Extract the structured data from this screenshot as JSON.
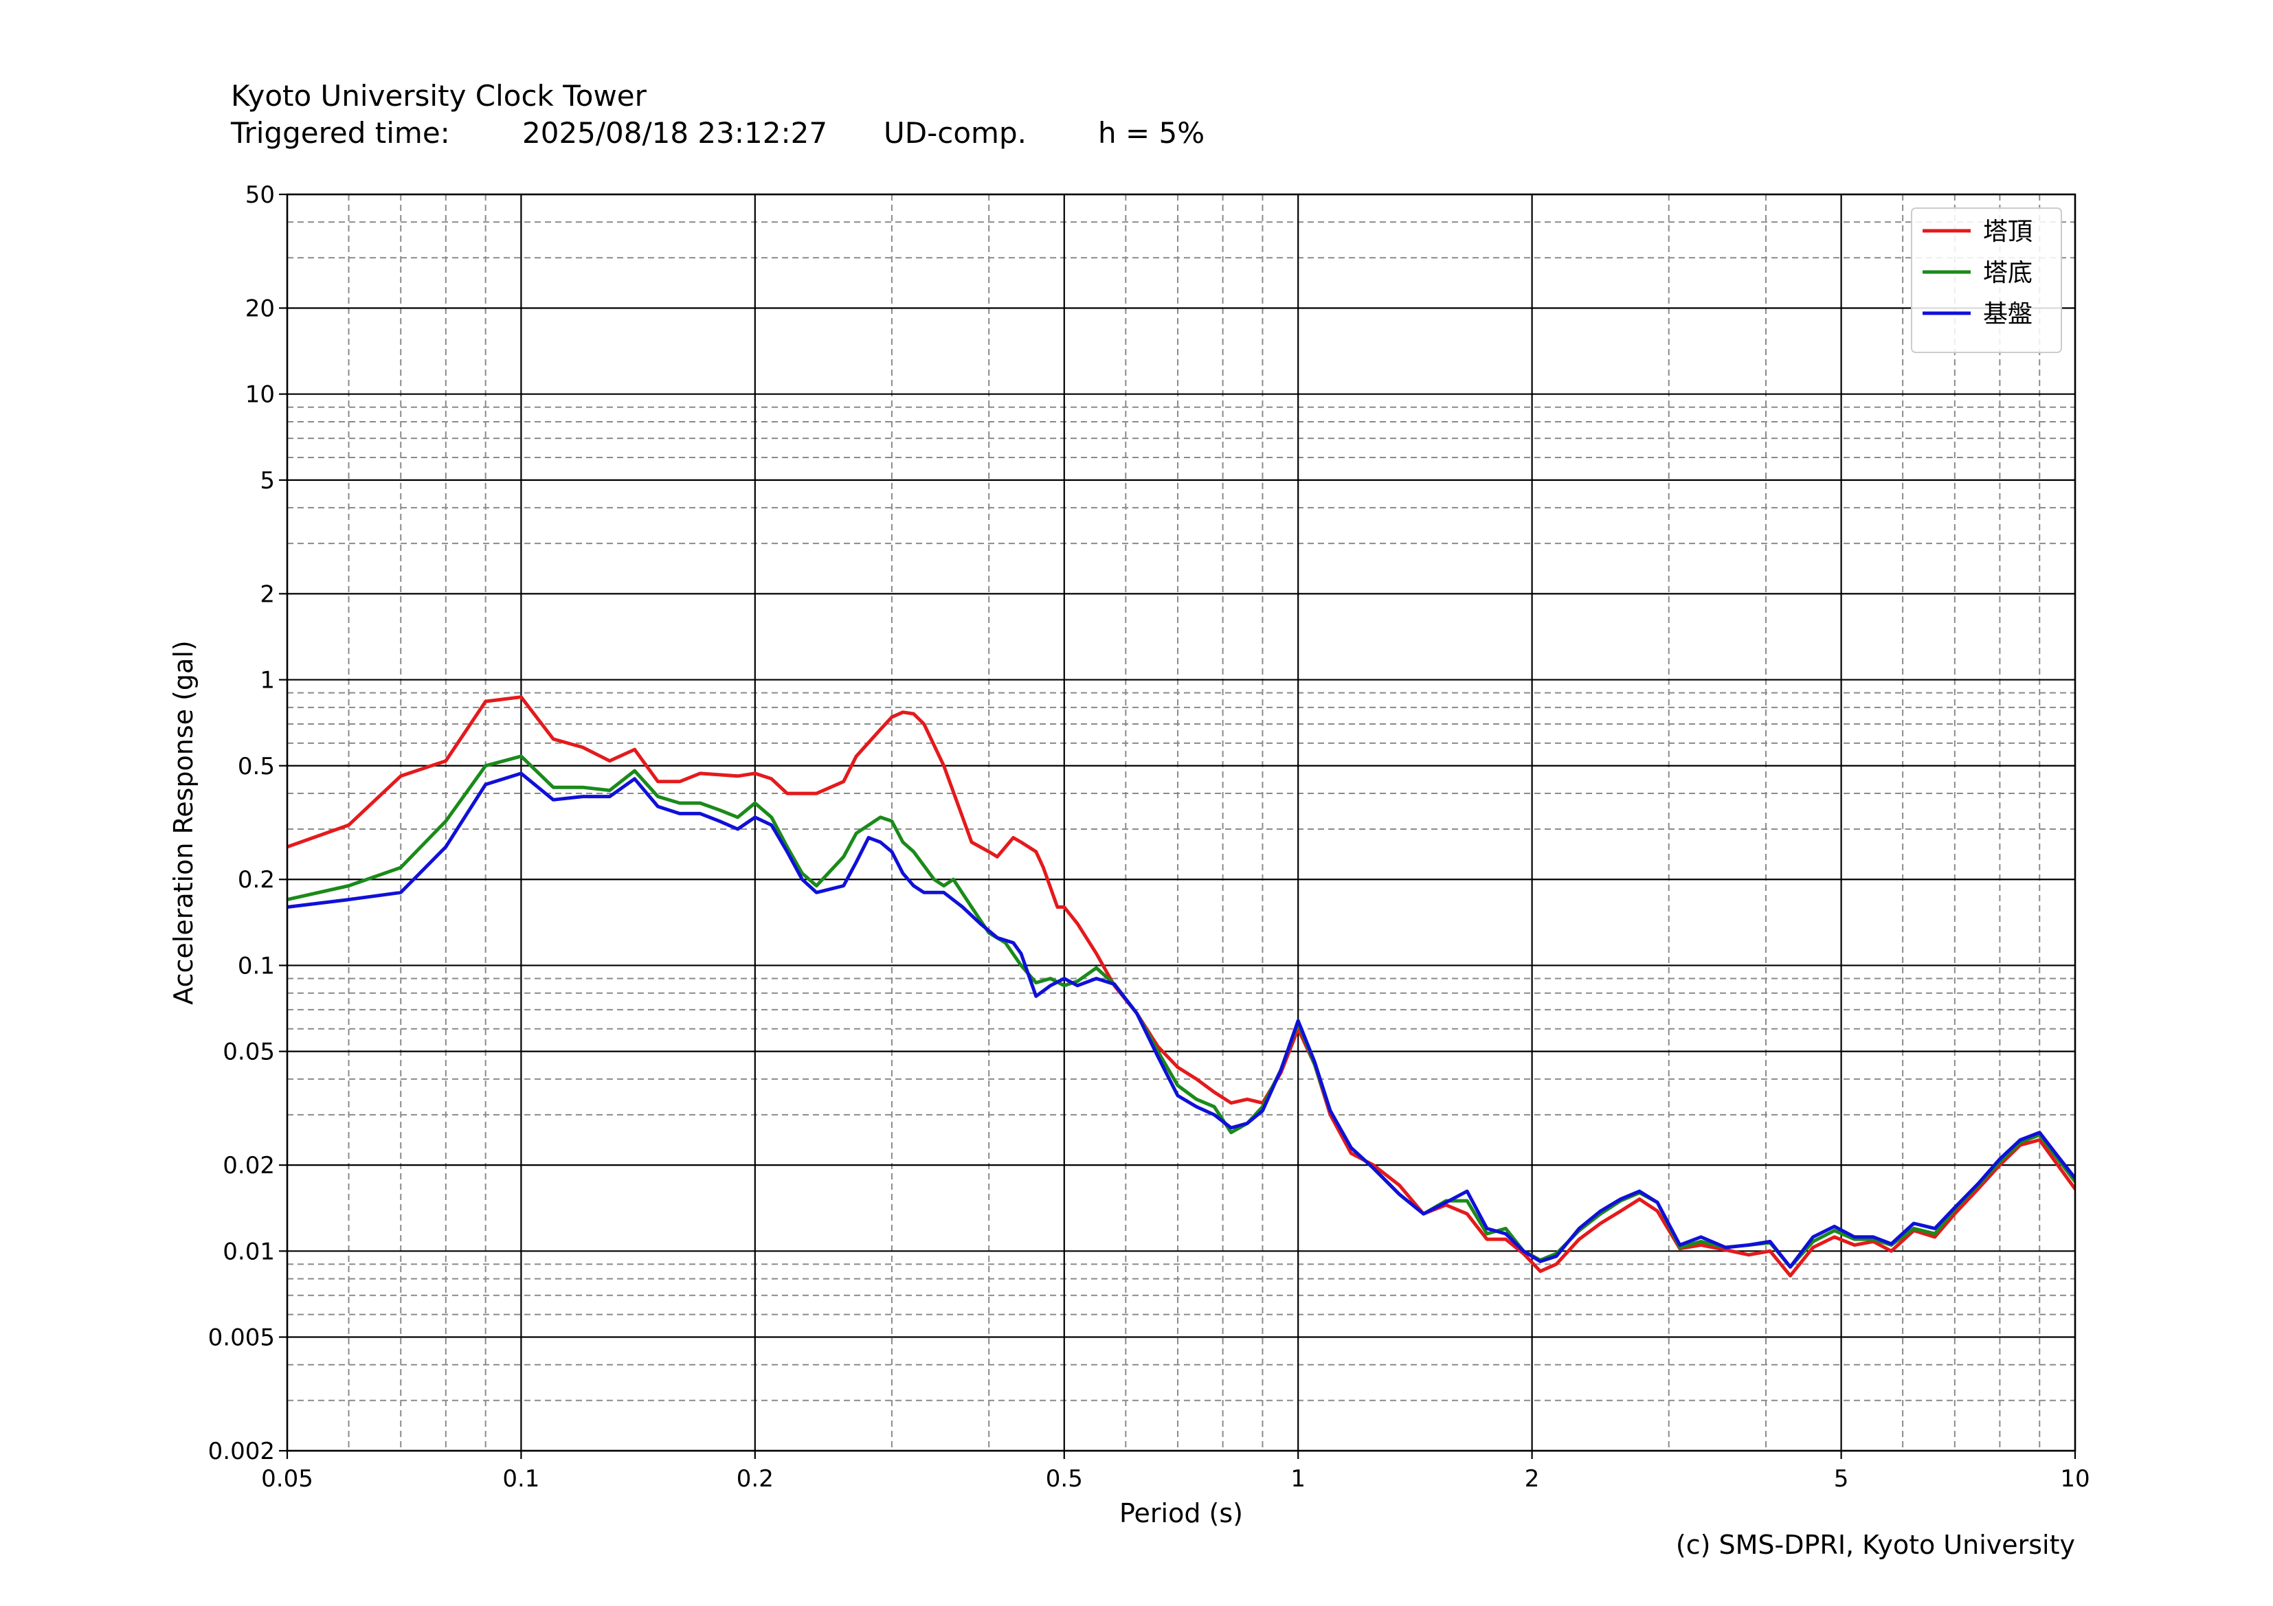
{
  "header": {
    "station": "Kyoto University Clock Tower",
    "triggered_label": "Triggered time:",
    "triggered_value": "2025/08/18 23:12:27",
    "component": "UD-comp.",
    "damping": "h = 5%"
  },
  "credit": "(c) SMS-DPRI, Kyoto University",
  "chart_data": {
    "type": "line",
    "xlabel": "Period (s)",
    "ylabel": "Acceleration Response (gal)",
    "xscale": "log",
    "yscale": "log",
    "xlim": [
      0.05,
      10
    ],
    "ylim": [
      0.002,
      50
    ],
    "grid": true,
    "legend_position": "top-right",
    "x_ticks": [
      0.05,
      0.1,
      0.2,
      0.5,
      1,
      2,
      5,
      10
    ],
    "x_tick_labels": [
      "0.05",
      "0.1",
      "0.2",
      "0.5",
      "1",
      "2",
      "5",
      "10"
    ],
    "y_ticks": [
      0.002,
      0.005,
      0.01,
      0.02,
      0.05,
      0.1,
      0.2,
      0.5,
      1,
      2,
      5,
      10,
      20,
      50
    ],
    "y_tick_labels": [
      "0.002",
      "0.005",
      "0.01",
      "0.02",
      "0.05",
      "0.1",
      "0.2",
      "0.5",
      "1",
      "2",
      "5",
      "10",
      "20",
      "50"
    ],
    "series": [
      {
        "name": "塔頂",
        "color": "#e41a1c",
        "points": [
          [
            0.05,
            0.26
          ],
          [
            0.06,
            0.31
          ],
          [
            0.07,
            0.46
          ],
          [
            0.08,
            0.52
          ],
          [
            0.09,
            0.84
          ],
          [
            0.1,
            0.87
          ],
          [
            0.11,
            0.62
          ],
          [
            0.12,
            0.58
          ],
          [
            0.13,
            0.52
          ],
          [
            0.14,
            0.57
          ],
          [
            0.15,
            0.44
          ],
          [
            0.16,
            0.44
          ],
          [
            0.17,
            0.47
          ],
          [
            0.19,
            0.46
          ],
          [
            0.2,
            0.47
          ],
          [
            0.21,
            0.45
          ],
          [
            0.22,
            0.4
          ],
          [
            0.24,
            0.4
          ],
          [
            0.26,
            0.44
          ],
          [
            0.27,
            0.54
          ],
          [
            0.29,
            0.67
          ],
          [
            0.3,
            0.74
          ],
          [
            0.31,
            0.77
          ],
          [
            0.32,
            0.76
          ],
          [
            0.33,
            0.7
          ],
          [
            0.35,
            0.5
          ],
          [
            0.37,
            0.33
          ],
          [
            0.38,
            0.27
          ],
          [
            0.4,
            0.25
          ],
          [
            0.41,
            0.24
          ],
          [
            0.43,
            0.28
          ],
          [
            0.44,
            0.27
          ],
          [
            0.46,
            0.25
          ],
          [
            0.47,
            0.22
          ],
          [
            0.49,
            0.16
          ],
          [
            0.5,
            0.16
          ],
          [
            0.52,
            0.14
          ],
          [
            0.55,
            0.11
          ],
          [
            0.58,
            0.085
          ],
          [
            0.62,
            0.068
          ],
          [
            0.66,
            0.052
          ],
          [
            0.7,
            0.044
          ],
          [
            0.74,
            0.04
          ],
          [
            0.78,
            0.036
          ],
          [
            0.82,
            0.033
          ],
          [
            0.86,
            0.034
          ],
          [
            0.9,
            0.033
          ],
          [
            0.95,
            0.042
          ],
          [
            1.0,
            0.06
          ],
          [
            1.05,
            0.045
          ],
          [
            1.1,
            0.03
          ],
          [
            1.17,
            0.022
          ],
          [
            1.25,
            0.02
          ],
          [
            1.35,
            0.017
          ],
          [
            1.45,
            0.0135
          ],
          [
            1.55,
            0.0145
          ],
          [
            1.65,
            0.0135
          ],
          [
            1.75,
            0.011
          ],
          [
            1.85,
            0.011
          ],
          [
            1.95,
            0.0098
          ],
          [
            2.05,
            0.0085
          ],
          [
            2.15,
            0.009
          ],
          [
            2.3,
            0.011
          ],
          [
            2.45,
            0.0125
          ],
          [
            2.6,
            0.0138
          ],
          [
            2.75,
            0.0152
          ],
          [
            2.9,
            0.0138
          ],
          [
            3.1,
            0.0102
          ],
          [
            3.3,
            0.0105
          ],
          [
            3.55,
            0.0101
          ],
          [
            3.8,
            0.0097
          ],
          [
            4.05,
            0.01
          ],
          [
            4.3,
            0.0082
          ],
          [
            4.6,
            0.0103
          ],
          [
            4.9,
            0.0112
          ],
          [
            5.2,
            0.0105
          ],
          [
            5.5,
            0.0108
          ],
          [
            5.8,
            0.01
          ],
          [
            6.2,
            0.0118
          ],
          [
            6.6,
            0.0112
          ],
          [
            7.0,
            0.0135
          ],
          [
            7.5,
            0.0165
          ],
          [
            8.0,
            0.02
          ],
          [
            8.5,
            0.0235
          ],
          [
            9.0,
            0.0245
          ],
          [
            9.5,
            0.02
          ],
          [
            10.0,
            0.0165
          ]
        ]
      },
      {
        "name": "塔底",
        "color": "#1a8a1a",
        "points": [
          [
            0.05,
            0.17
          ],
          [
            0.06,
            0.19
          ],
          [
            0.07,
            0.22
          ],
          [
            0.08,
            0.32
          ],
          [
            0.09,
            0.5
          ],
          [
            0.1,
            0.54
          ],
          [
            0.11,
            0.42
          ],
          [
            0.12,
            0.42
          ],
          [
            0.13,
            0.41
          ],
          [
            0.14,
            0.48
          ],
          [
            0.15,
            0.39
          ],
          [
            0.16,
            0.37
          ],
          [
            0.17,
            0.37
          ],
          [
            0.18,
            0.35
          ],
          [
            0.19,
            0.33
          ],
          [
            0.2,
            0.37
          ],
          [
            0.21,
            0.33
          ],
          [
            0.22,
            0.26
          ],
          [
            0.23,
            0.21
          ],
          [
            0.24,
            0.19
          ],
          [
            0.26,
            0.24
          ],
          [
            0.27,
            0.29
          ],
          [
            0.29,
            0.33
          ],
          [
            0.3,
            0.32
          ],
          [
            0.31,
            0.27
          ],
          [
            0.32,
            0.25
          ],
          [
            0.34,
            0.2
          ],
          [
            0.35,
            0.19
          ],
          [
            0.36,
            0.2
          ],
          [
            0.38,
            0.16
          ],
          [
            0.4,
            0.13
          ],
          [
            0.42,
            0.12
          ],
          [
            0.44,
            0.1
          ],
          [
            0.46,
            0.087
          ],
          [
            0.48,
            0.09
          ],
          [
            0.5,
            0.085
          ],
          [
            0.52,
            0.088
          ],
          [
            0.55,
            0.098
          ],
          [
            0.58,
            0.086
          ],
          [
            0.62,
            0.068
          ],
          [
            0.66,
            0.05
          ],
          [
            0.7,
            0.038
          ],
          [
            0.74,
            0.034
          ],
          [
            0.78,
            0.032
          ],
          [
            0.82,
            0.026
          ],
          [
            0.86,
            0.028
          ],
          [
            0.9,
            0.032
          ],
          [
            0.95,
            0.043
          ],
          [
            1.0,
            0.063
          ],
          [
            1.05,
            0.045
          ],
          [
            1.1,
            0.031
          ],
          [
            1.17,
            0.023
          ],
          [
            1.25,
            0.0195
          ],
          [
            1.35,
            0.0158
          ],
          [
            1.45,
            0.0135
          ],
          [
            1.55,
            0.015
          ],
          [
            1.65,
            0.015
          ],
          [
            1.75,
            0.0115
          ],
          [
            1.85,
            0.012
          ],
          [
            1.95,
            0.01
          ],
          [
            2.05,
            0.0093
          ],
          [
            2.15,
            0.0098
          ],
          [
            2.3,
            0.0118
          ],
          [
            2.45,
            0.0135
          ],
          [
            2.6,
            0.015
          ],
          [
            2.75,
            0.016
          ],
          [
            2.9,
            0.0148
          ],
          [
            3.1,
            0.0103
          ],
          [
            3.3,
            0.0108
          ],
          [
            3.55,
            0.0103
          ],
          [
            3.8,
            0.0105
          ],
          [
            4.05,
            0.0107
          ],
          [
            4.3,
            0.0088
          ],
          [
            4.6,
            0.0108
          ],
          [
            4.9,
            0.0118
          ],
          [
            5.2,
            0.011
          ],
          [
            5.5,
            0.011
          ],
          [
            5.8,
            0.0105
          ],
          [
            6.2,
            0.012
          ],
          [
            6.6,
            0.0115
          ],
          [
            7.0,
            0.014
          ],
          [
            7.5,
            0.017
          ],
          [
            8.0,
            0.0205
          ],
          [
            8.5,
            0.024
          ],
          [
            9.0,
            0.0255
          ],
          [
            9.5,
            0.021
          ],
          [
            10.0,
            0.0175
          ]
        ]
      },
      {
        "name": "基盤",
        "color": "#1010d8",
        "points": [
          [
            0.05,
            0.16
          ],
          [
            0.06,
            0.17
          ],
          [
            0.07,
            0.18
          ],
          [
            0.08,
            0.26
          ],
          [
            0.09,
            0.43
          ],
          [
            0.1,
            0.47
          ],
          [
            0.11,
            0.38
          ],
          [
            0.12,
            0.39
          ],
          [
            0.13,
            0.39
          ],
          [
            0.14,
            0.45
          ],
          [
            0.15,
            0.36
          ],
          [
            0.16,
            0.34
          ],
          [
            0.17,
            0.34
          ],
          [
            0.18,
            0.32
          ],
          [
            0.19,
            0.3
          ],
          [
            0.2,
            0.33
          ],
          [
            0.21,
            0.31
          ],
          [
            0.22,
            0.25
          ],
          [
            0.23,
            0.2
          ],
          [
            0.24,
            0.18
          ],
          [
            0.26,
            0.19
          ],
          [
            0.27,
            0.23
          ],
          [
            0.28,
            0.28
          ],
          [
            0.29,
            0.27
          ],
          [
            0.3,
            0.25
          ],
          [
            0.31,
            0.21
          ],
          [
            0.32,
            0.19
          ],
          [
            0.33,
            0.18
          ],
          [
            0.34,
            0.18
          ],
          [
            0.35,
            0.18
          ],
          [
            0.37,
            0.16
          ],
          [
            0.39,
            0.14
          ],
          [
            0.41,
            0.125
          ],
          [
            0.43,
            0.12
          ],
          [
            0.44,
            0.11
          ],
          [
            0.46,
            0.078
          ],
          [
            0.48,
            0.085
          ],
          [
            0.5,
            0.09
          ],
          [
            0.52,
            0.085
          ],
          [
            0.55,
            0.09
          ],
          [
            0.58,
            0.086
          ],
          [
            0.62,
            0.068
          ],
          [
            0.66,
            0.048
          ],
          [
            0.7,
            0.035
          ],
          [
            0.74,
            0.032
          ],
          [
            0.78,
            0.03
          ],
          [
            0.82,
            0.027
          ],
          [
            0.86,
            0.028
          ],
          [
            0.9,
            0.031
          ],
          [
            0.95,
            0.043
          ],
          [
            1.0,
            0.064
          ],
          [
            1.05,
            0.046
          ],
          [
            1.1,
            0.031
          ],
          [
            1.17,
            0.023
          ],
          [
            1.25,
            0.0195
          ],
          [
            1.35,
            0.0158
          ],
          [
            1.45,
            0.0135
          ],
          [
            1.55,
            0.0148
          ],
          [
            1.65,
            0.0162
          ],
          [
            1.75,
            0.012
          ],
          [
            1.85,
            0.0115
          ],
          [
            1.95,
            0.01
          ],
          [
            2.05,
            0.0092
          ],
          [
            2.15,
            0.0096
          ],
          [
            2.3,
            0.012
          ],
          [
            2.45,
            0.0138
          ],
          [
            2.6,
            0.0152
          ],
          [
            2.75,
            0.0162
          ],
          [
            2.9,
            0.0148
          ],
          [
            3.1,
            0.0105
          ],
          [
            3.3,
            0.0112
          ],
          [
            3.55,
            0.0103
          ],
          [
            3.8,
            0.0105
          ],
          [
            4.05,
            0.0108
          ],
          [
            4.3,
            0.0088
          ],
          [
            4.6,
            0.0112
          ],
          [
            4.9,
            0.0122
          ],
          [
            5.2,
            0.0112
          ],
          [
            5.5,
            0.0112
          ],
          [
            5.8,
            0.0106
          ],
          [
            6.2,
            0.0125
          ],
          [
            6.6,
            0.012
          ],
          [
            7.0,
            0.0142
          ],
          [
            7.5,
            0.0172
          ],
          [
            8.0,
            0.021
          ],
          [
            8.5,
            0.0245
          ],
          [
            9.0,
            0.026
          ],
          [
            9.5,
            0.0215
          ],
          [
            10.0,
            0.018
          ]
        ]
      }
    ]
  }
}
